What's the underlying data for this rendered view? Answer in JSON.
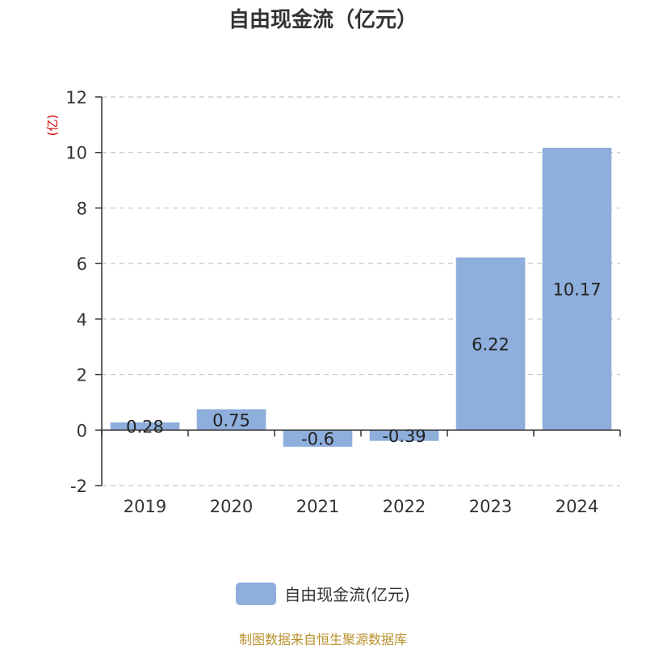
{
  "chart_data": {
    "type": "bar",
    "title": "自由现金流（亿元）",
    "ylabel": "(亿)",
    "xlabel": "",
    "categories": [
      "2019",
      "2020",
      "2021",
      "2022",
      "2023",
      "2024"
    ],
    "series": [
      {
        "name": "自由现金流(亿元)",
        "values": [
          0.28,
          0.75,
          -0.6,
          -0.39,
          6.22,
          10.17
        ]
      }
    ],
    "data_labels": [
      "0.28",
      "0.75",
      "-0.6",
      "-0.39",
      "6.22",
      "10.17"
    ],
    "ylim": [
      -2,
      12
    ],
    "yticks": [
      -2,
      0,
      2,
      4,
      6,
      8,
      10,
      12
    ],
    "grid": true,
    "legend_position": "bottom",
    "bar_color": "#8eaedb",
    "ylabel_color": "#cc0000"
  },
  "source_text": "制图数据来自恒生聚源数据库"
}
